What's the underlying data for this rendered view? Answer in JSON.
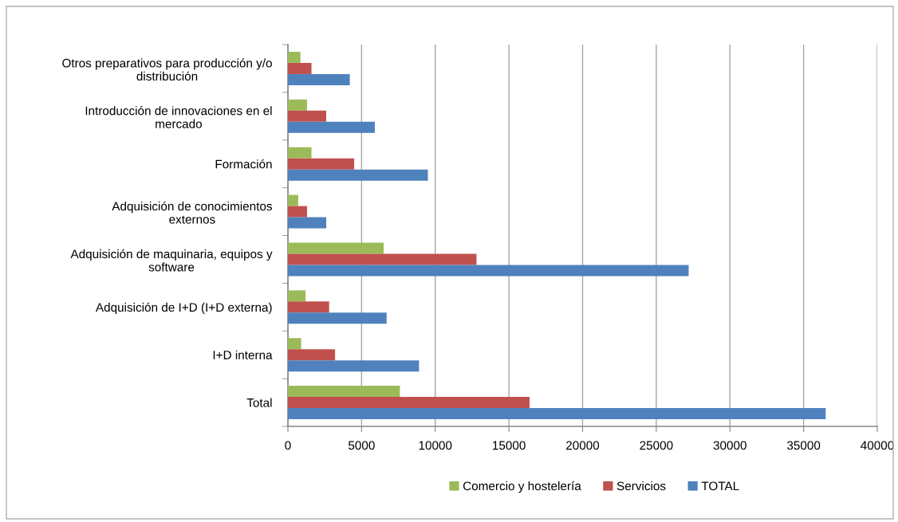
{
  "chart_data": {
    "type": "bar",
    "orientation": "horizontal",
    "categories": [
      "Otros preparativos para producción y/o\ndistribución",
      "Introducción de innovaciones en el\nmercado",
      "Formación",
      "Adquisición de conocimientos\nexternos",
      "Adquisición de maquinaria, equipos y\nsoftware",
      "Adquisición de I+D (I+D externa)",
      "I+D interna",
      "Total"
    ],
    "series": [
      {
        "name": "Comercio y hostelería",
        "color": "#9bbb59",
        "values": [
          850,
          1300,
          1600,
          700,
          6500,
          1200,
          900,
          7600
        ]
      },
      {
        "name": "Servicios",
        "color": "#c0504d",
        "values": [
          1600,
          2600,
          4500,
          1300,
          12800,
          2800,
          3200,
          16400
        ]
      },
      {
        "name": "TOTAL",
        "color": "#4f81bd",
        "values": [
          4200,
          5900,
          9500,
          2600,
          27200,
          6700,
          8900,
          36500
        ]
      }
    ],
    "xlim": [
      0,
      40000
    ],
    "xticks": [
      0,
      5000,
      10000,
      15000,
      20000,
      25000,
      30000,
      35000,
      40000
    ],
    "grid": "x",
    "legend": "bottom"
  }
}
